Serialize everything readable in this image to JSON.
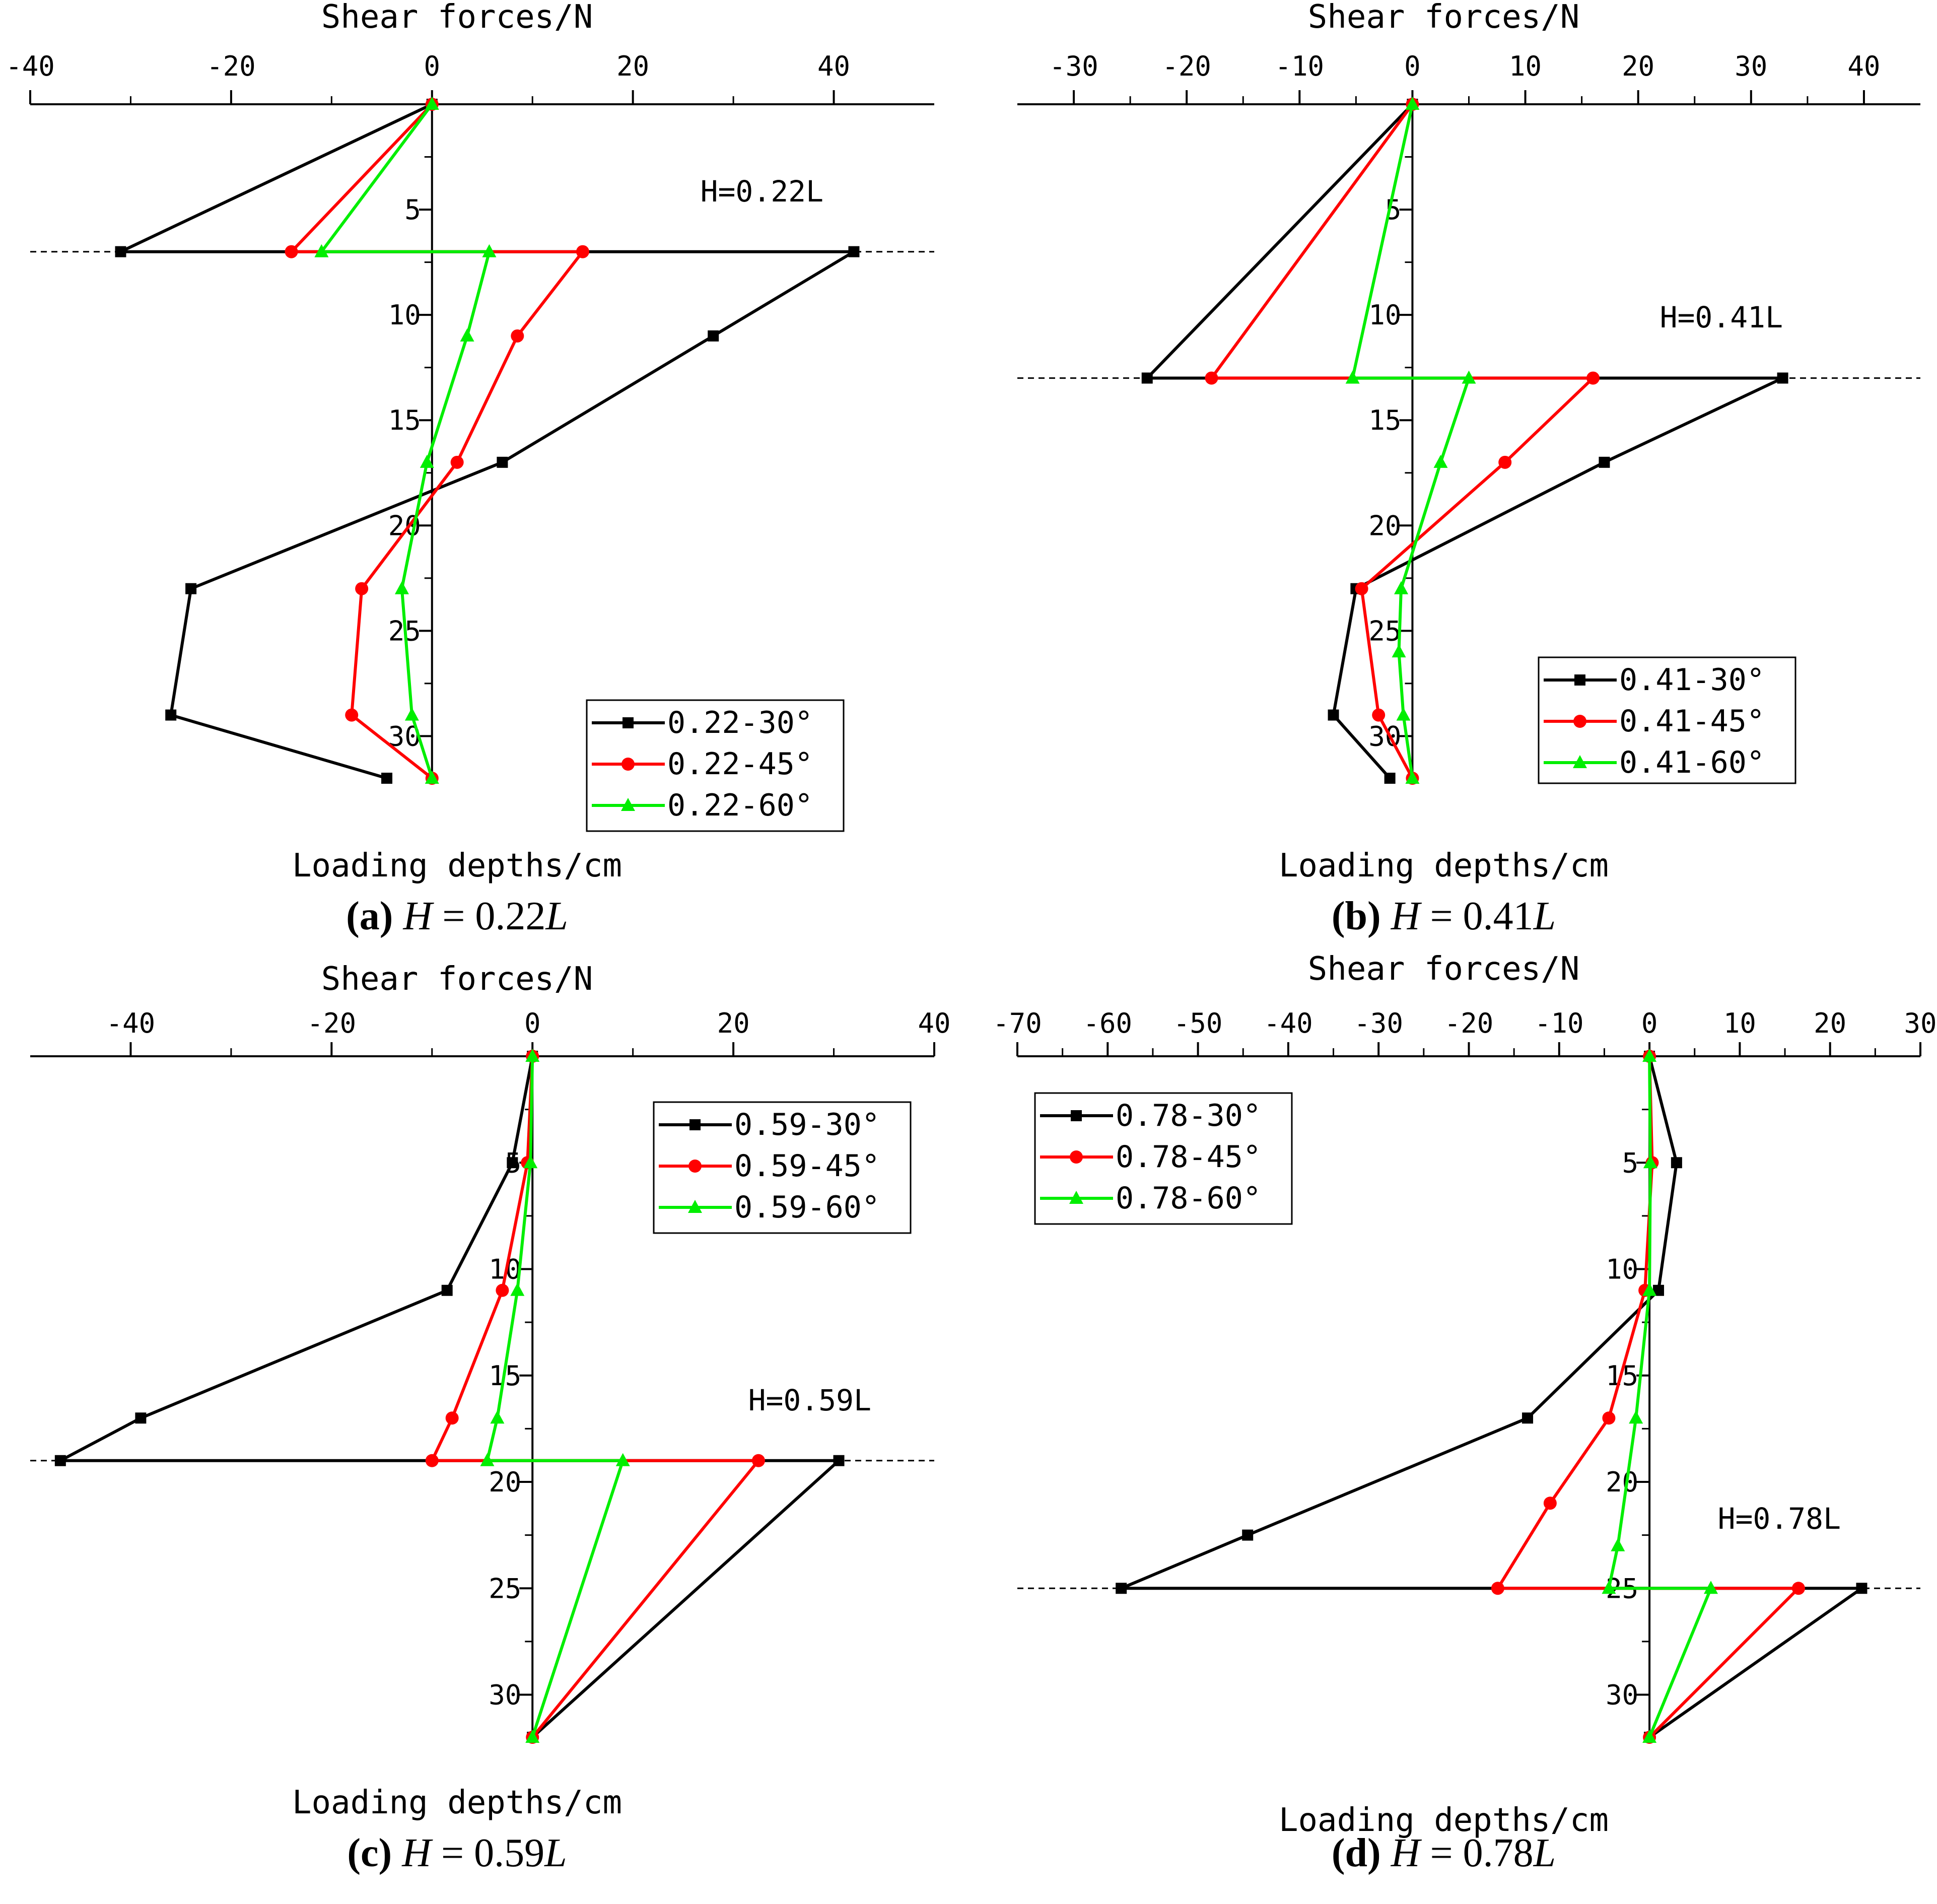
{
  "chart_data": [
    {
      "type": "line",
      "panel_label": "(a)",
      "caption_var": "H",
      "caption_eq": " = 0.22",
      "caption_unit": "L",
      "xlabel": "Shear forces/N",
      "ylabel": "Loading depths/cm",
      "annotation": "H=0.22L",
      "xlim": [
        -40,
        50
      ],
      "ylim": [
        0,
        32
      ],
      "xticks": [
        -40,
        -20,
        0,
        20,
        40
      ],
      "yticks": [
        5,
        10,
        15,
        20,
        25,
        30
      ],
      "y_inverted": true,
      "grid": false,
      "legend_position": "bottom-right",
      "reference_depth": 7,
      "series": [
        {
          "name": "0.22-30°",
          "color": "#000000",
          "marker": "square",
          "points": [
            [
              0,
              0
            ],
            [
              -31,
              7
            ],
            [
              42,
              7
            ],
            [
              28,
              11
            ],
            [
              7,
              17
            ],
            [
              -24,
              23
            ],
            [
              -26,
              29
            ],
            [
              -4.5,
              32
            ]
          ]
        },
        {
          "name": "0.22-45°",
          "color": "#ff0000",
          "marker": "circle",
          "points": [
            [
              0,
              0
            ],
            [
              -14,
              7
            ],
            [
              15,
              7
            ],
            [
              8.5,
              11
            ],
            [
              2.5,
              17
            ],
            [
              -7,
              23
            ],
            [
              -8,
              29
            ],
            [
              0,
              32
            ]
          ]
        },
        {
          "name": "0.22-60°",
          "color": "#00ee00",
          "marker": "triangle",
          "points": [
            [
              0,
              0
            ],
            [
              -11,
              7
            ],
            [
              5.7,
              7
            ],
            [
              3.5,
              11
            ],
            [
              -0.5,
              17
            ],
            [
              -3,
              23
            ],
            [
              -2,
              29
            ],
            [
              0,
              32
            ]
          ]
        }
      ]
    },
    {
      "type": "line",
      "panel_label": "(b)",
      "caption_var": "H",
      "caption_eq": " = 0.41",
      "caption_unit": "L",
      "xlabel": "Shear forces/N",
      "ylabel": "Loading depths/cm",
      "annotation": "H=0.41L",
      "xlim": [
        -35,
        45
      ],
      "ylim": [
        0,
        32
      ],
      "xticks": [
        -30,
        -20,
        -10,
        0,
        10,
        20,
        30,
        40
      ],
      "yticks": [
        5,
        10,
        15,
        20,
        25,
        30
      ],
      "y_inverted": true,
      "grid": false,
      "legend_position": "bottom-right",
      "reference_depth": 13,
      "series": [
        {
          "name": "0.41-30°",
          "color": "#000000",
          "marker": "square",
          "points": [
            [
              0,
              0
            ],
            [
              -23.5,
              13
            ],
            [
              32.8,
              13
            ],
            [
              17,
              17
            ],
            [
              -5,
              23
            ],
            [
              -7,
              29
            ],
            [
              -2,
              32
            ]
          ]
        },
        {
          "name": "0.41-45°",
          "color": "#ff0000",
          "marker": "circle",
          "points": [
            [
              0,
              0
            ],
            [
              -17.8,
              13
            ],
            [
              16,
              13
            ],
            [
              8.2,
              17
            ],
            [
              -4.5,
              23
            ],
            [
              -3,
              29
            ],
            [
              0,
              32
            ]
          ]
        },
        {
          "name": "0.41-60°",
          "color": "#00ee00",
          "marker": "triangle",
          "points": [
            [
              0,
              0
            ],
            [
              -5.3,
              13
            ],
            [
              5,
              13
            ],
            [
              2.5,
              17
            ],
            [
              -1,
              23
            ],
            [
              -1.2,
              26
            ],
            [
              -0.8,
              29
            ],
            [
              0,
              32
            ]
          ]
        }
      ]
    },
    {
      "type": "line",
      "panel_label": "(c)",
      "caption_var": "H",
      "caption_eq": " = 0.59",
      "caption_unit": "L",
      "xlabel": "Shear forces/N",
      "ylabel": "Loading depths/cm",
      "annotation": "H=0.59L",
      "xlim": [
        -50,
        40
      ],
      "ylim": [
        0,
        32
      ],
      "xticks": [
        -40,
        -20,
        0,
        20,
        40
      ],
      "yticks": [
        5,
        10,
        15,
        20,
        25,
        30
      ],
      "y_inverted": true,
      "grid": false,
      "legend_position": "top-right",
      "reference_depth": 19,
      "series": [
        {
          "name": "0.59-30°",
          "color": "#000000",
          "marker": "square",
          "points": [
            [
              0,
              0
            ],
            [
              -2,
              5
            ],
            [
              -8.5,
              11
            ],
            [
              -39,
              17
            ],
            [
              -47,
              19
            ],
            [
              30.5,
              19
            ],
            [
              0,
              32
            ]
          ]
        },
        {
          "name": "0.59-45°",
          "color": "#ff0000",
          "marker": "circle",
          "points": [
            [
              0,
              0
            ],
            [
              -0.5,
              5
            ],
            [
              -3,
              11
            ],
            [
              -8,
              17
            ],
            [
              -10,
              19
            ],
            [
              22.5,
              19
            ],
            [
              0,
              32
            ]
          ]
        },
        {
          "name": "0.59-60°",
          "color": "#00ee00",
          "marker": "triangle",
          "points": [
            [
              0,
              0
            ],
            [
              -0.2,
              5
            ],
            [
              -1.5,
              11
            ],
            [
              -3.5,
              17
            ],
            [
              -4.5,
              19
            ],
            [
              9,
              19
            ],
            [
              0,
              32
            ]
          ]
        }
      ]
    },
    {
      "type": "line",
      "panel_label": "(d)",
      "caption_var": "H",
      "caption_eq": " = 0.78",
      "caption_unit": "L",
      "xlabel": "Shear forces/N",
      "ylabel": "Loading depths/cm",
      "annotation": "H=0.78L",
      "xlim": [
        -70,
        30
      ],
      "ylim": [
        0,
        32
      ],
      "xticks": [
        -70,
        -60,
        -50,
        -40,
        -30,
        -20,
        -10,
        0,
        10,
        20,
        30
      ],
      "yticks": [
        5,
        10,
        15,
        20,
        25,
        30
      ],
      "y_inverted": true,
      "grid": false,
      "legend_position": "top-left",
      "reference_depth": 25,
      "series": [
        {
          "name": "0.78-30°",
          "color": "#000000",
          "marker": "square",
          "points": [
            [
              0,
              0
            ],
            [
              3,
              5
            ],
            [
              1,
              11
            ],
            [
              -13.5,
              17
            ],
            [
              -44.5,
              22.5
            ],
            [
              -58.5,
              25
            ],
            [
              23.5,
              25
            ],
            [
              0,
              32
            ]
          ]
        },
        {
          "name": "0.78-45°",
          "color": "#ff0000",
          "marker": "circle",
          "points": [
            [
              0,
              0
            ],
            [
              0.3,
              5
            ],
            [
              -0.5,
              11
            ],
            [
              -4.5,
              17
            ],
            [
              -11,
              21
            ],
            [
              -16.8,
              25
            ],
            [
              16.5,
              25
            ],
            [
              0,
              32
            ]
          ]
        },
        {
          "name": "0.78-60°",
          "color": "#00ee00",
          "marker": "triangle",
          "points": [
            [
              0,
              0
            ],
            [
              0.1,
              5
            ],
            [
              0,
              11
            ],
            [
              -1.5,
              17
            ],
            [
              -3.5,
              23
            ],
            [
              -4.5,
              25
            ],
            [
              6.8,
              25
            ],
            [
              0,
              32
            ]
          ]
        }
      ]
    }
  ]
}
